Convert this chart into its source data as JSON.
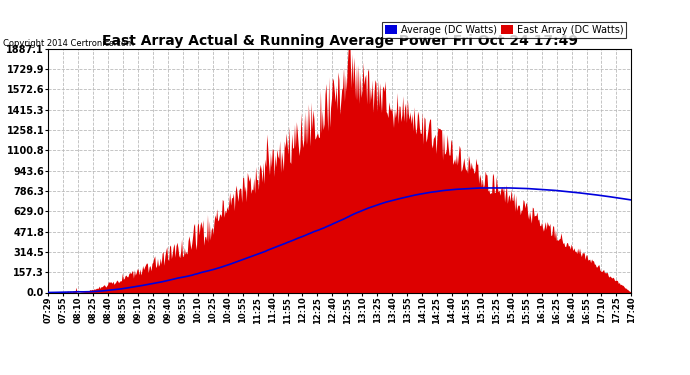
{
  "title": "East Array Actual & Running Average Power Fri Oct 24 17:49",
  "copyright": "Copyright 2014 Certronics.com",
  "legend_labels": [
    "Average (DC Watts)",
    "East Array (DC Watts)"
  ],
  "legend_colors": [
    "#0000dd",
    "#dd0000"
  ],
  "background_color": "#ffffff",
  "plot_bg_color": "#ffffff",
  "grid_color": "#bbbbbb",
  "fill_color": "#dd0000",
  "line_color": "#0000dd",
  "y_ticks": [
    0.0,
    157.3,
    314.5,
    471.8,
    629.0,
    786.3,
    943.6,
    1100.8,
    1258.1,
    1415.3,
    1572.6,
    1729.9,
    1887.1
  ],
  "y_max": 1887.1,
  "x_tick_labels": [
    "07:29",
    "07:55",
    "08:10",
    "08:25",
    "08:40",
    "08:55",
    "09:10",
    "09:25",
    "09:40",
    "09:55",
    "10:10",
    "10:25",
    "10:40",
    "10:55",
    "11:25",
    "11:40",
    "11:55",
    "12:10",
    "12:25",
    "12:40",
    "12:55",
    "13:10",
    "13:25",
    "13:40",
    "13:55",
    "14:10",
    "14:25",
    "14:40",
    "14:55",
    "15:10",
    "15:25",
    "15:40",
    "15:55",
    "16:10",
    "16:25",
    "16:40",
    "16:55",
    "17:10",
    "17:25",
    "17:40"
  ]
}
